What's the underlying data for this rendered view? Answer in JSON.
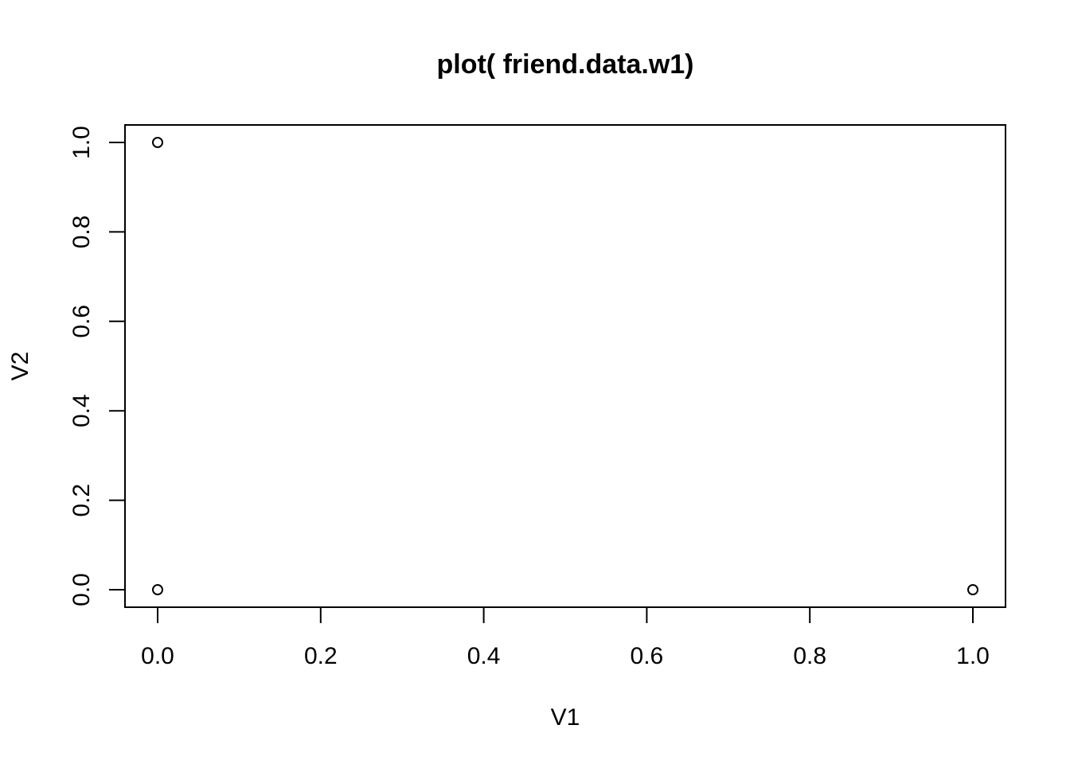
{
  "chart_data": {
    "type": "scatter",
    "title": "plot( friend.data.w1)",
    "xlabel": "V1",
    "ylabel": "V2",
    "xlim": [
      0.0,
      1.0
    ],
    "ylim": [
      0.0,
      1.0
    ],
    "x_ticks": [
      "0.0",
      "0.2",
      "0.4",
      "0.6",
      "0.8",
      "1.0"
    ],
    "y_ticks": [
      "0.0",
      "0.2",
      "0.4",
      "0.6",
      "0.8",
      "1.0"
    ],
    "grid": false,
    "marker": "open-circle",
    "points": [
      {
        "x": 0.0,
        "y": 1.0
      },
      {
        "x": 0.0,
        "y": 0.0
      },
      {
        "x": 1.0,
        "y": 0.0
      }
    ]
  }
}
